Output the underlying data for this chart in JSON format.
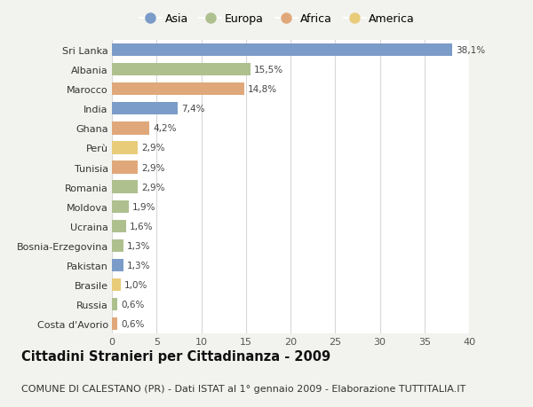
{
  "countries": [
    "Sri Lanka",
    "Albania",
    "Marocco",
    "India",
    "Ghana",
    "Perù",
    "Tunisia",
    "Romania",
    "Moldova",
    "Ucraina",
    "Bosnia-Erzegovina",
    "Pakistan",
    "Brasile",
    "Russia",
    "Costa d'Avorio"
  ],
  "values": [
    38.1,
    15.5,
    14.8,
    7.4,
    4.2,
    2.9,
    2.9,
    2.9,
    1.9,
    1.6,
    1.3,
    1.3,
    1.0,
    0.6,
    0.6
  ],
  "labels": [
    "38,1%",
    "15,5%",
    "14,8%",
    "7,4%",
    "4,2%",
    "2,9%",
    "2,9%",
    "2,9%",
    "1,9%",
    "1,6%",
    "1,3%",
    "1,3%",
    "1,0%",
    "0,6%",
    "0,6%"
  ],
  "continents": [
    "Asia",
    "Europa",
    "Africa",
    "Asia",
    "Africa",
    "America",
    "Africa",
    "Europa",
    "Europa",
    "Europa",
    "Europa",
    "Asia",
    "America",
    "Europa",
    "Africa"
  ],
  "continent_colors": {
    "Asia": "#7b9bc8",
    "Europa": "#aec08e",
    "Africa": "#e0a87a",
    "America": "#e8cc7a"
  },
  "legend_order": [
    "Asia",
    "Europa",
    "Africa",
    "America"
  ],
  "title": "Cittadini Stranieri per Cittadinanza - 2009",
  "subtitle": "COMUNE DI CALESTANO (PR) - Dati ISTAT al 1° gennaio 2009 - Elaborazione TUTTITALIA.IT",
  "xlim": [
    0,
    40
  ],
  "xticks": [
    0,
    5,
    10,
    15,
    20,
    25,
    30,
    35,
    40
  ],
  "background_color": "#f2f2ee",
  "plot_background": "#ffffff",
  "grid_color": "#d8d8d8",
  "title_fontsize": 10.5,
  "subtitle_fontsize": 8,
  "label_fontsize": 7.5,
  "tick_fontsize": 8,
  "legend_fontsize": 9
}
